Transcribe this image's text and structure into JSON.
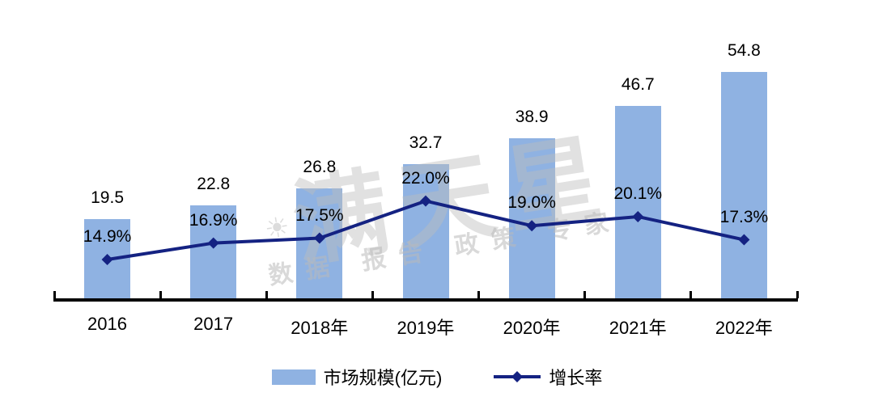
{
  "chart_data": {
    "type": "bar",
    "subtype": "bar-line-combo",
    "title": "",
    "categories": [
      "2016",
      "2017",
      "2018年",
      "2019年",
      "2020年",
      "2021年",
      "2022年"
    ],
    "series": [
      {
        "name": "市场规模(亿元)",
        "type": "bar",
        "values": [
          19.5,
          22.8,
          26.8,
          32.7,
          38.9,
          46.7,
          54.8
        ],
        "labels": [
          "19.5",
          "22.8",
          "26.8",
          "32.7",
          "38.9",
          "46.7",
          "54.8"
        ],
        "color": "#8FB2E2"
      },
      {
        "name": "增长率",
        "type": "line",
        "values": [
          14.9,
          16.9,
          17.5,
          22.0,
          19.0,
          20.1,
          17.3
        ],
        "labels": [
          "14.9%",
          "16.9%",
          "17.5%",
          "22.0%",
          "19.0%",
          "20.1%",
          "17.3%"
        ],
        "color": "#142282",
        "marker": "diamond"
      }
    ],
    "legend": {
      "position": "bottom",
      "items": [
        "市场规模(亿元)",
        "增长率"
      ]
    },
    "axes": {
      "x_tick_labels": [
        "2016",
        "2017",
        "2018年",
        "2019年",
        "2020年",
        "2021年",
        "2022年"
      ],
      "y_left_visible": false,
      "y_right_visible": false,
      "y_left_range_estimate": [
        0,
        58
      ],
      "y_right_range_estimate": [
        10,
        25
      ]
    },
    "grid": false,
    "data_labels_visible": true
  },
  "watermark": {
    "sun_icon": "☀",
    "brand": "满天星",
    "tagline": "数据 报告 政策 专家"
  },
  "colors": {
    "bar": "#8FB2E2",
    "line": "#142282",
    "axis": "#000000",
    "label": "#000000",
    "watermark": "#BCBCBC"
  }
}
